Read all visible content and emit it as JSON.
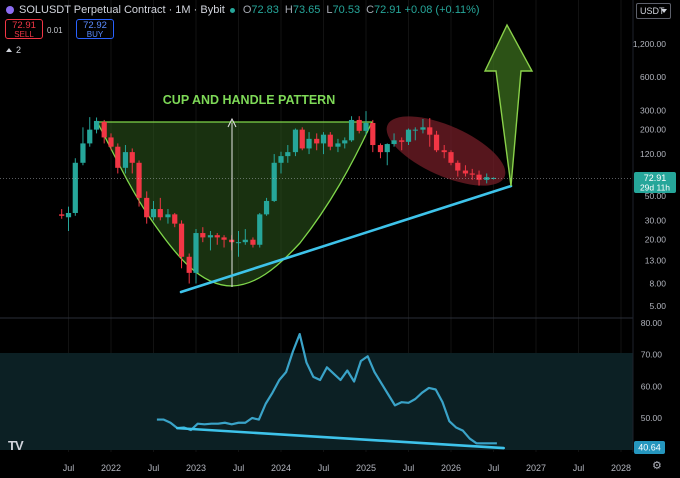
{
  "header": {
    "title": "SOLUSDT Perpetual Contract · 1M · Bybit",
    "open_label": "O",
    "open": "72.83",
    "high_label": "H",
    "high": "73.65",
    "low_label": "L",
    "low": "70.53",
    "close_label": "C",
    "close": "72.91",
    "change": "+0.08 (+0.11%)"
  },
  "trade": {
    "sell_price": "72.91",
    "sell_label": "SELL",
    "spread": "0.01",
    "buy_price": "72.92",
    "buy_label": "BUY"
  },
  "indicator_count": "2",
  "currency_button": "USDT",
  "price_badge": {
    "value": "72.91",
    "countdown": "29d 11h"
  },
  "indicator_badge": "40.64",
  "logo": "TV",
  "annotation": "CUP AND HANDLE PATTERN",
  "colors": {
    "up": "#26a69a",
    "down": "#f23645",
    "trendline": "#3ec3ea",
    "cup_fill": "#2e5a1e",
    "cup_stroke": "#7fd64a",
    "title_green": "#7ed957",
    "handle_fill": "#7a1f2a",
    "indicator_line": "#3aa3c8",
    "panel_bg": "#0c2024"
  },
  "chart_data": [
    {
      "type": "candlestick",
      "scale": "log",
      "y_ticks": [
        "1,200.00",
        "600.00",
        "300.00",
        "200.00",
        "120.00",
        "70.00",
        "50.00",
        "30.00",
        "20.00",
        "13.00",
        "8.00",
        "5.00"
      ],
      "y_tick_values": [
        1200,
        600,
        300,
        200,
        120,
        70,
        50,
        30,
        20,
        13,
        8,
        5
      ],
      "x_ticks": [
        "Jul",
        "2022",
        "Jul",
        "2023",
        "Jul",
        "2024",
        "Jul",
        "2025",
        "Jul",
        "2026",
        "Jul",
        "2027",
        "Jul",
        "2028"
      ],
      "x_tick_values": [
        2021.5,
        2022,
        2022.5,
        2023,
        2023.5,
        2024,
        2024.5,
        2025,
        2025.5,
        2026,
        2026.5,
        2027,
        2027.5,
        2028
      ],
      "ohlc": [
        [
          2021.42,
          34,
          38,
          31,
          33
        ],
        [
          2021.5,
          32,
          40,
          24,
          35
        ],
        [
          2021.58,
          35,
          110,
          33,
          100
        ],
        [
          2021.67,
          100,
          210,
          95,
          150
        ],
        [
          2021.75,
          150,
          260,
          140,
          200
        ],
        [
          2021.83,
          200,
          258,
          185,
          240
        ],
        [
          2021.92,
          235,
          245,
          150,
          170
        ],
        [
          2022.0,
          170,
          185,
          130,
          140
        ],
        [
          2022.08,
          140,
          150,
          80,
          90
        ],
        [
          2022.17,
          90,
          145,
          80,
          125
        ],
        [
          2022.25,
          125,
          135,
          80,
          100
        ],
        [
          2022.33,
          100,
          105,
          40,
          48
        ],
        [
          2022.42,
          48,
          55,
          28,
          32
        ],
        [
          2022.5,
          32,
          45,
          30,
          38
        ],
        [
          2022.58,
          38,
          48,
          30,
          32
        ],
        [
          2022.67,
          32,
          38,
          28,
          34
        ],
        [
          2022.75,
          34,
          35,
          26,
          28
        ],
        [
          2022.83,
          28,
          30,
          11,
          14
        ],
        [
          2022.92,
          14,
          15,
          8,
          10
        ],
        [
          2023.0,
          10,
          25,
          8,
          23
        ],
        [
          2023.08,
          23,
          26,
          19,
          21
        ],
        [
          2023.17,
          21,
          24,
          16,
          22
        ],
        [
          2023.25,
          22,
          23,
          18,
          21
        ],
        [
          2023.33,
          21,
          22,
          17,
          20
        ],
        [
          2023.42,
          20,
          22,
          16,
          19
        ],
        [
          2023.5,
          19,
          24,
          14,
          19
        ],
        [
          2023.58,
          19,
          25,
          18,
          20
        ],
        [
          2023.67,
          20,
          21,
          17,
          18
        ],
        [
          2023.75,
          18,
          35,
          17,
          34
        ],
        [
          2023.83,
          34,
          48,
          33,
          45
        ],
        [
          2023.92,
          45,
          120,
          44,
          100
        ],
        [
          2024.0,
          100,
          126,
          80,
          115
        ],
        [
          2024.08,
          115,
          145,
          100,
          125
        ],
        [
          2024.17,
          125,
          205,
          115,
          200
        ],
        [
          2024.25,
          200,
          210,
          130,
          135
        ],
        [
          2024.33,
          135,
          190,
          120,
          165
        ],
        [
          2024.42,
          165,
          185,
          130,
          150
        ],
        [
          2024.5,
          150,
          190,
          120,
          180
        ],
        [
          2024.58,
          180,
          190,
          130,
          140
        ],
        [
          2024.67,
          140,
          165,
          125,
          150
        ],
        [
          2024.75,
          150,
          170,
          135,
          160
        ],
        [
          2024.83,
          160,
          265,
          155,
          245
        ],
        [
          2024.92,
          245,
          265,
          185,
          195
        ],
        [
          2025.0,
          195,
          295,
          180,
          230
        ],
        [
          2025.08,
          230,
          245,
          125,
          145
        ],
        [
          2025.17,
          145,
          150,
          110,
          125
        ],
        [
          2025.25,
          125,
          150,
          95,
          148
        ],
        [
          2025.33,
          148,
          185,
          140,
          160
        ],
        [
          2025.42,
          160,
          170,
          130,
          155
        ],
        [
          2025.5,
          155,
          205,
          145,
          200
        ],
        [
          2025.58,
          200,
          210,
          160,
          200
        ],
        [
          2025.67,
          200,
          250,
          185,
          210
        ],
        [
          2025.75,
          210,
          255,
          140,
          180
        ],
        [
          2025.83,
          180,
          195,
          125,
          130
        ],
        [
          2025.92,
          130,
          145,
          110,
          125
        ],
        [
          2026.0,
          125,
          130,
          95,
          100
        ],
        [
          2026.08,
          100,
          105,
          75,
          85
        ],
        [
          2026.17,
          85,
          95,
          75,
          80
        ],
        [
          2026.25,
          80,
          88,
          70,
          78
        ],
        [
          2026.33,
          78,
          85,
          62,
          70
        ],
        [
          2026.42,
          70,
          80,
          65,
          74
        ],
        [
          2026.5,
          72.83,
          73.65,
          70.53,
          72.91
        ]
      ],
      "last_price": 72.91
    },
    {
      "type": "line",
      "name": "",
      "y_ticks": [
        "80.00",
        "70.00",
        "60.00",
        "50.00"
      ],
      "y_tick_values": [
        80,
        70,
        60,
        50
      ],
      "ylim": [
        38,
        82
      ],
      "x": [
        2022.54,
        2022.62,
        2022.7,
        2022.78,
        2022.86,
        2022.94,
        2023.02,
        2023.1,
        2023.18,
        2023.26,
        2023.34,
        2023.42,
        2023.5,
        2023.58,
        2023.66,
        2023.74,
        2023.82,
        2023.9,
        2023.98,
        2024.06,
        2024.14,
        2024.22,
        2024.3,
        2024.38,
        2024.46,
        2024.54,
        2024.62,
        2024.7,
        2024.78,
        2024.86,
        2024.94,
        2025.02,
        2025.1,
        2025.18,
        2025.26,
        2025.34,
        2025.42,
        2025.5,
        2025.58,
        2025.66,
        2025.74,
        2025.82,
        2025.9,
        2025.98,
        2026.06,
        2026.14,
        2026.22,
        2026.3,
        2026.38,
        2026.46,
        2026.54
      ],
      "y": [
        49.5,
        49.5,
        48.5,
        46.8,
        47,
        46.2,
        48.2,
        48,
        48.2,
        48.2,
        48.5,
        48,
        48.5,
        48.5,
        50,
        49.5,
        54.5,
        58,
        62,
        64.5,
        71,
        76.5,
        67.5,
        63,
        62,
        66,
        64,
        62,
        65,
        61.5,
        68,
        69.5,
        64.5,
        61,
        57.5,
        54,
        55,
        54.8,
        56,
        58,
        59.5,
        59,
        55,
        49,
        47,
        46,
        43.5,
        42,
        42,
        42,
        42
      ],
      "trendline": {
        "x": [
          2022.78,
          2026.62
        ],
        "y": [
          46.8,
          40.5
        ]
      }
    }
  ]
}
